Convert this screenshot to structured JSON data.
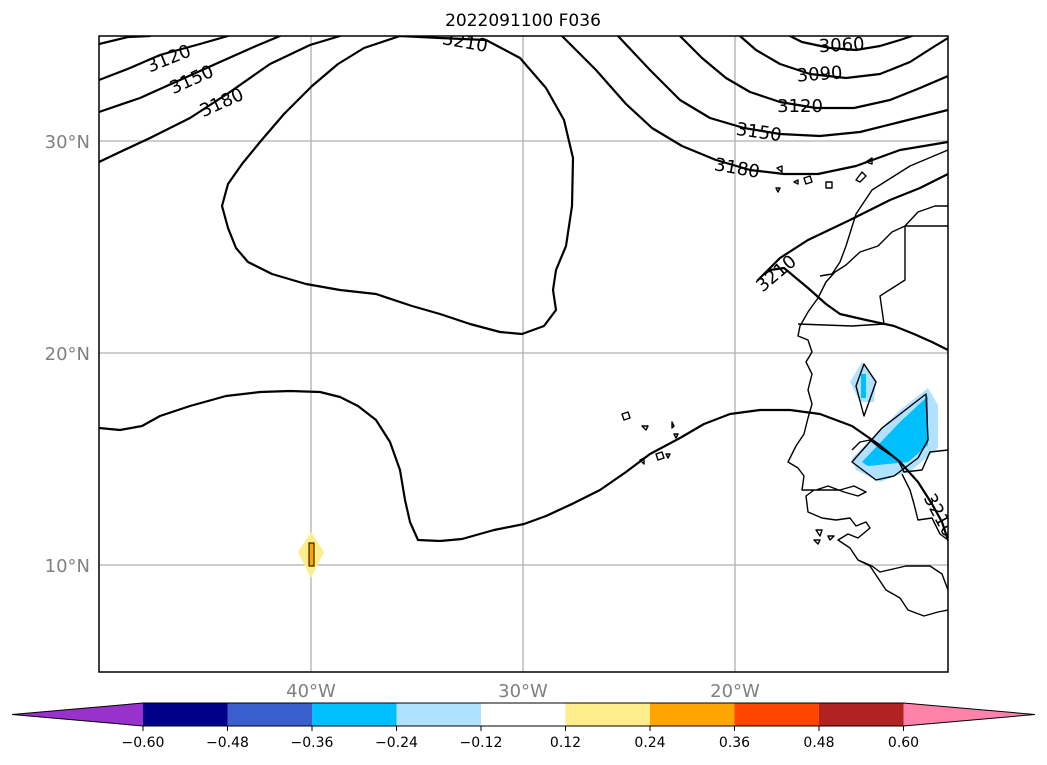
{
  "title": "2022091100 F036",
  "lat_labels": [
    "30°N",
    "20°N",
    "10°N"
  ],
  "lon_labels": [
    "40°W",
    "30°W",
    "20°W"
  ],
  "contour_labels": [
    "3060",
    "3090",
    "3120",
    "3150",
    "3180",
    "3120",
    "3150",
    "3180",
    "3210",
    "3210",
    "3210"
  ],
  "colorbar": {
    "ticks": [
      "−0.60",
      "−0.48",
      "−0.36",
      "−0.24",
      "−0.12",
      "0.12",
      "0.24",
      "0.36",
      "0.48",
      "0.60"
    ],
    "colors": [
      "#9932cc",
      "#00008b",
      "#3a5fcd",
      "#00bfff",
      "#b0e2ff",
      "#ffffff",
      "#ffec8b",
      "#ffa500",
      "#ff4500",
      "#b22222",
      "#ff82ab"
    ]
  },
  "anomaly_colors": {
    "light_blue": "#b0e2ff",
    "blue": "#00bfff",
    "light_yellow": "#ffec8b",
    "orange": "#ffa500"
  }
}
